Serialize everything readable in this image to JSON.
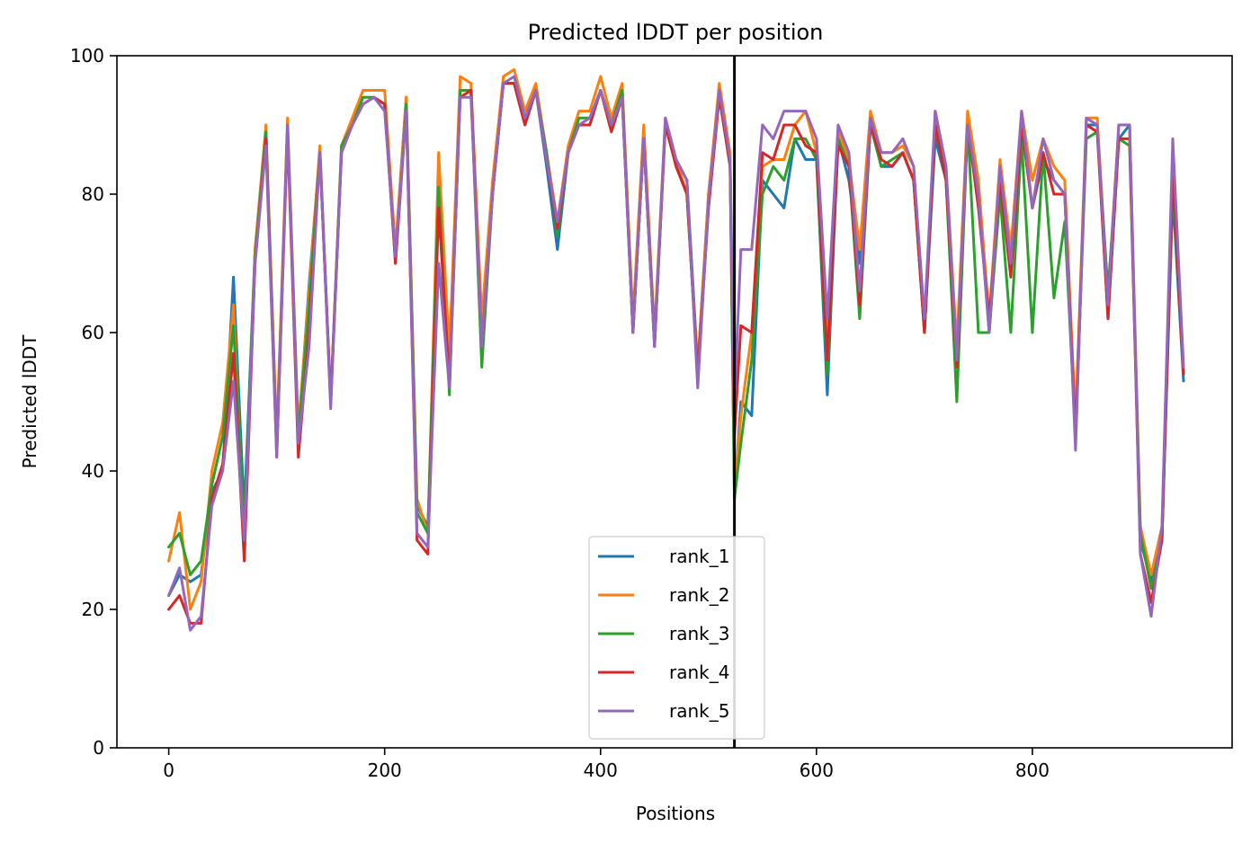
{
  "chart_data": {
    "type": "line",
    "title": "Predicted lDDT per position",
    "xlabel": "Positions",
    "ylabel": "Predicted lDDT",
    "xlim": [
      -48,
      985
    ],
    "ylim": [
      0,
      100
    ],
    "xticks": [
      0,
      200,
      400,
      600,
      800
    ],
    "yticks": [
      0,
      20,
      40,
      60,
      80,
      100
    ],
    "grid": false,
    "legend_position": "lower center",
    "vline_x": 524,
    "vline_color": "#000000",
    "x": [
      0,
      10,
      20,
      30,
      40,
      50,
      60,
      70,
      80,
      90,
      100,
      110,
      120,
      130,
      140,
      150,
      160,
      170,
      180,
      190,
      200,
      210,
      220,
      230,
      240,
      250,
      260,
      270,
      280,
      290,
      300,
      310,
      320,
      330,
      340,
      350,
      360,
      370,
      380,
      390,
      400,
      410,
      420,
      430,
      440,
      450,
      460,
      470,
      480,
      490,
      500,
      510,
      520,
      524,
      530,
      540,
      550,
      560,
      570,
      580,
      590,
      600,
      610,
      620,
      630,
      640,
      650,
      660,
      670,
      680,
      690,
      700,
      710,
      720,
      730,
      740,
      750,
      760,
      770,
      780,
      790,
      800,
      810,
      820,
      830,
      840,
      850,
      860,
      870,
      880,
      890,
      900,
      910,
      920,
      930,
      940
    ],
    "series": [
      {
        "name": "rank_1",
        "color": "#1f77b4",
        "values": [
          22,
          25,
          24,
          25,
          37,
          40,
          68,
          34,
          72,
          89,
          44,
          90,
          45,
          67,
          86,
          50,
          86,
          90,
          93,
          94,
          93,
          72,
          94,
          35,
          32,
          70,
          55,
          95,
          95,
          60,
          80,
          96,
          96,
          90,
          95,
          84,
          72,
          86,
          90,
          90,
          95,
          90,
          94,
          60,
          88,
          58,
          90,
          85,
          82,
          55,
          80,
          95,
          85,
          36,
          50,
          48,
          82,
          80,
          78,
          88,
          85,
          85,
          51,
          88,
          82,
          70,
          90,
          84,
          84,
          86,
          82,
          60,
          88,
          82,
          55,
          90,
          80,
          60,
          82,
          70,
          90,
          78,
          85,
          82,
          80,
          44,
          90,
          90,
          62,
          88,
          90,
          30,
          24,
          30,
          80,
          53
        ]
      },
      {
        "name": "rank_2",
        "color": "#ff7f0e",
        "values": [
          27,
          34,
          20,
          24,
          40,
          47,
          64,
          30,
          72,
          90,
          45,
          91,
          46,
          66,
          87,
          50,
          87,
          91,
          95,
          95,
          95,
          72,
          94,
          36,
          31,
          86,
          57,
          97,
          96,
          62,
          82,
          97,
          98,
          92,
          96,
          86,
          76,
          87,
          92,
          92,
          97,
          91,
          96,
          62,
          90,
          60,
          91,
          85,
          80,
          55,
          80,
          96,
          86,
          37,
          48,
          60,
          84,
          85,
          85,
          90,
          92,
          86,
          58,
          89,
          85,
          72,
          92,
          86,
          86,
          87,
          84,
          60,
          92,
          84,
          58,
          92,
          82,
          62,
          85,
          72,
          92,
          82,
          88,
          84,
          82,
          47,
          91,
          91,
          65,
          90,
          90,
          32,
          25,
          32,
          82,
          54
        ]
      },
      {
        "name": "rank_3",
        "color": "#2ca02c",
        "values": [
          29,
          31,
          25,
          27,
          38,
          45,
          61,
          32,
          71,
          89,
          43,
          90,
          45,
          64,
          86,
          50,
          87,
          90,
          94,
          94,
          93,
          70,
          93,
          34,
          31,
          81,
          51,
          95,
          95,
          55,
          80,
          96,
          96,
          91,
          95,
          86,
          74,
          86,
          91,
          91,
          95,
          90,
          95,
          60,
          88,
          59,
          90,
          84,
          80,
          54,
          78,
          95,
          84,
          36,
          44,
          56,
          80,
          84,
          82,
          88,
          88,
          85,
          54,
          88,
          84,
          62,
          90,
          84,
          85,
          86,
          82,
          60,
          90,
          82,
          50,
          90,
          60,
          60,
          80,
          60,
          88,
          60,
          86,
          65,
          76,
          45,
          88,
          89,
          66,
          88,
          87,
          31,
          23,
          30,
          82,
          54
        ]
      },
      {
        "name": "rank_4",
        "color": "#d62728",
        "values": [
          20,
          22,
          18,
          18,
          36,
          41,
          57,
          27,
          70,
          88,
          42,
          89,
          42,
          60,
          86,
          50,
          86,
          90,
          93,
          94,
          93,
          70,
          92,
          30,
          28,
          78,
          53,
          94,
          95,
          58,
          80,
          96,
          96,
          90,
          95,
          85,
          75,
          86,
          90,
          90,
          95,
          89,
          94,
          60,
          88,
          58,
          90,
          84,
          80,
          54,
          78,
          94,
          84,
          45,
          61,
          60,
          86,
          85,
          90,
          90,
          87,
          86,
          56,
          87,
          84,
          64,
          90,
          85,
          84,
          86,
          82,
          60,
          90,
          82,
          55,
          90,
          78,
          62,
          82,
          68,
          90,
          78,
          86,
          80,
          80,
          45,
          90,
          89,
          62,
          88,
          88,
          28,
          21,
          30,
          83,
          54
        ]
      },
      {
        "name": "rank_5",
        "color": "#9467bd",
        "values": [
          22,
          26,
          17,
          19,
          35,
          40,
          53,
          30,
          70,
          87,
          42,
          90,
          44,
          58,
          86,
          49,
          86,
          90,
          93,
          94,
          92,
          71,
          92,
          31,
          29,
          70,
          52,
          94,
          94,
          58,
          80,
          96,
          97,
          91,
          95,
          85,
          76,
          86,
          90,
          91,
          95,
          90,
          94,
          60,
          88,
          58,
          91,
          85,
          82,
          52,
          79,
          95,
          85,
          50,
          72,
          72,
          90,
          88,
          92,
          92,
          92,
          88,
          62,
          90,
          86,
          66,
          91,
          86,
          86,
          88,
          84,
          62,
          92,
          84,
          56,
          90,
          80,
          60,
          84,
          70,
          92,
          78,
          88,
          82,
          80,
          43,
          91,
          90,
          64,
          90,
          90,
          28,
          19,
          32,
          88,
          55
        ]
      }
    ]
  }
}
